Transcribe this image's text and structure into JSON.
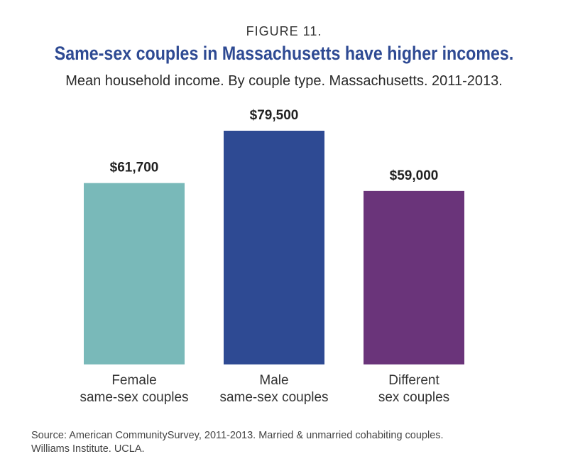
{
  "figure_label": "FIGURE 11.",
  "source": {
    "line1": "Source: American CommunitySurvey, 2011-2013. Married & unmarried cohabiting couples.",
    "line2": "Williams Institute. UCLA."
  },
  "chart_data": {
    "type": "bar",
    "title": "Same-sex couples in Massachusetts have higher incomes.",
    "subtitle": "Mean household income. By couple type. Massachusetts. 2011-2013.",
    "xlabel": "",
    "ylabel": "",
    "grid": false,
    "categories": [
      [
        "Female",
        "same-sex couples"
      ],
      [
        "Male",
        "same-sex couples"
      ],
      [
        "Different",
        "sex couples"
      ]
    ],
    "values": [
      61700,
      79500,
      59000
    ],
    "data_labels": [
      "$61,700",
      "$79,500",
      "$59,000"
    ],
    "colors": [
      "#79b9b9",
      "#2e4a93",
      "#6a347a"
    ],
    "ylim": [
      0,
      79500
    ]
  }
}
